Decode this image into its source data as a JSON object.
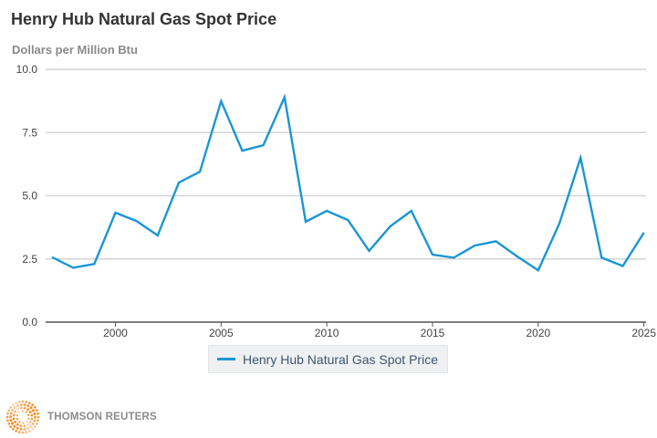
{
  "header": {
    "title": "Henry Hub Natural Gas Spot Price",
    "units": "Dollars per Million Btu"
  },
  "brand": {
    "name": "THOMSON REUTERS",
    "logo_icon": "thomson-reuters-dot-sphere-icon",
    "logo_color": "#f08a24"
  },
  "chart_data": {
    "type": "line",
    "title": "Henry Hub Natural Gas Spot Price",
    "ylabel": "Dollars per Million Btu",
    "xlabel": "",
    "x": [
      1997,
      1998,
      1999,
      2000,
      2001,
      2002,
      2003,
      2004,
      2005,
      2006,
      2007,
      2008,
      2009,
      2010,
      2011,
      2012,
      2013,
      2014,
      2015,
      2016,
      2017,
      2018,
      2019,
      2020,
      2021,
      2022,
      2023,
      2024,
      2025
    ],
    "series": [
      {
        "name": "Henry Hub Natural Gas Spot Price",
        "color": "#1a96d4",
        "values": [
          2.57,
          2.15,
          2.3,
          4.33,
          4.0,
          3.43,
          5.52,
          5.95,
          8.74,
          6.78,
          7.0,
          8.9,
          3.97,
          4.4,
          4.04,
          2.82,
          3.79,
          4.4,
          2.67,
          2.55,
          3.03,
          3.2,
          2.6,
          2.05,
          3.9,
          6.5,
          2.55,
          2.22,
          3.54
        ]
      }
    ],
    "xlim": [
      1996.7,
      2025.1
    ],
    "ylim": [
      0,
      10
    ],
    "xticks": [
      2000,
      2005,
      2010,
      2015,
      2020,
      2025
    ],
    "xtick_labels": [
      "2000",
      "2005",
      "2010",
      "2015",
      "2020",
      "2025"
    ],
    "yticks": [
      0,
      2.5,
      5,
      7.5,
      10
    ],
    "ytick_labels": [
      "0.0",
      "2.5",
      "5.0",
      "7.5",
      "10.0"
    ],
    "grid": "horizontal",
    "legend": "bottom-center"
  }
}
